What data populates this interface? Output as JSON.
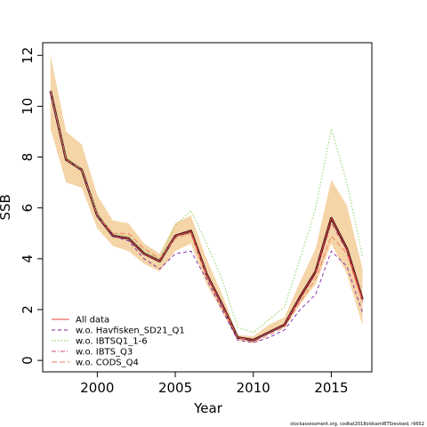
{
  "chart_data": {
    "type": "line",
    "xlabel": "Year",
    "ylabel": "SSB",
    "xlim": [
      1996.5,
      2017.6
    ],
    "ylim": [
      -0.45,
      12.5
    ],
    "x_ticks": [
      2000,
      2005,
      2010,
      2015
    ],
    "y_ticks": [
      0,
      2,
      4,
      6,
      8,
      10,
      12
    ],
    "x": [
      1997,
      1998,
      1999,
      2000,
      2001,
      2002,
      2003,
      2004,
      2005,
      2006,
      2007,
      2008,
      2009,
      2010,
      2011,
      2012,
      2013,
      2014,
      2015,
      2016,
      2017
    ],
    "band": {
      "color": "#f5d5a8",
      "lower": [
        9.1,
        7.0,
        6.8,
        5.2,
        4.5,
        4.3,
        3.8,
        3.5,
        4.3,
        4.6,
        3.0,
        1.9,
        0.8,
        0.7,
        1.1,
        1.3,
        2.2,
        3.0,
        4.6,
        3.4,
        1.4
      ],
      "upper": [
        12.0,
        9.0,
        8.5,
        6.5,
        5.5,
        5.4,
        4.6,
        4.2,
        5.4,
        5.7,
        4.0,
        2.6,
        1.0,
        0.95,
        1.4,
        1.7,
        3.1,
        4.4,
        7.1,
        6.1,
        3.6
      ]
    },
    "main_line": {
      "color": "#2b0a14",
      "values": [
        10.6,
        7.9,
        7.5,
        5.7,
        4.9,
        4.8,
        4.2,
        3.9,
        4.9,
        5.1,
        3.4,
        2.2,
        0.9,
        0.8,
        1.1,
        1.4,
        2.5,
        3.5,
        5.6,
        4.4,
        2.4
      ]
    },
    "series": [
      {
        "name": "All data",
        "color": "#e8463c",
        "dash": "",
        "values": [
          10.6,
          7.9,
          7.5,
          5.7,
          4.9,
          4.8,
          4.2,
          3.9,
          4.9,
          5.1,
          3.4,
          2.2,
          0.9,
          0.8,
          1.1,
          1.4,
          2.5,
          3.5,
          5.6,
          4.4,
          2.4
        ]
      },
      {
        "name": "w.o. Havfisken_SD21_Q1",
        "color": "#7b1fa2",
        "dash": "4,3",
        "values": [
          10.5,
          7.9,
          7.5,
          5.7,
          4.9,
          4.7,
          4.0,
          3.6,
          4.2,
          4.3,
          3.2,
          2.0,
          0.8,
          0.7,
          0.9,
          1.2,
          2.0,
          2.6,
          4.3,
          3.7,
          1.9
        ]
      },
      {
        "name": "w.o. IBTSQ1_1-6",
        "color": "#7ccf4a",
        "dash": "1.5,2",
        "values": [
          10.6,
          8.0,
          7.5,
          5.8,
          5.0,
          4.9,
          4.3,
          4.0,
          5.3,
          5.9,
          4.6,
          3.2,
          1.3,
          1.1,
          1.6,
          2.1,
          4.0,
          6.0,
          9.1,
          7.0,
          4.1
        ]
      },
      {
        "name": "w.o. IBTS_Q3",
        "color": "#d94f6a",
        "dash": "5,2,1,2",
        "values": [
          10.6,
          7.9,
          7.5,
          5.7,
          4.9,
          4.8,
          4.2,
          3.9,
          4.9,
          5.0,
          3.4,
          2.2,
          0.9,
          0.8,
          1.1,
          1.4,
          2.4,
          3.4,
          5.4,
          4.3,
          2.3
        ]
      },
      {
        "name": "w.o. CODS_Q4",
        "color": "#f07a55",
        "dash": "6,3",
        "values": [
          10.6,
          7.9,
          7.5,
          5.7,
          5.0,
          5.0,
          4.4,
          4.0,
          4.8,
          5.0,
          3.3,
          2.1,
          0.9,
          0.7,
          1.0,
          1.3,
          2.3,
          3.2,
          4.9,
          4.2,
          2.3
        ]
      }
    ],
    "legend_position": "bottom-left",
    "grid": false
  },
  "footnote": "stockassessment.org,  codkat2018oldsamIBTSrevised,  r9652"
}
